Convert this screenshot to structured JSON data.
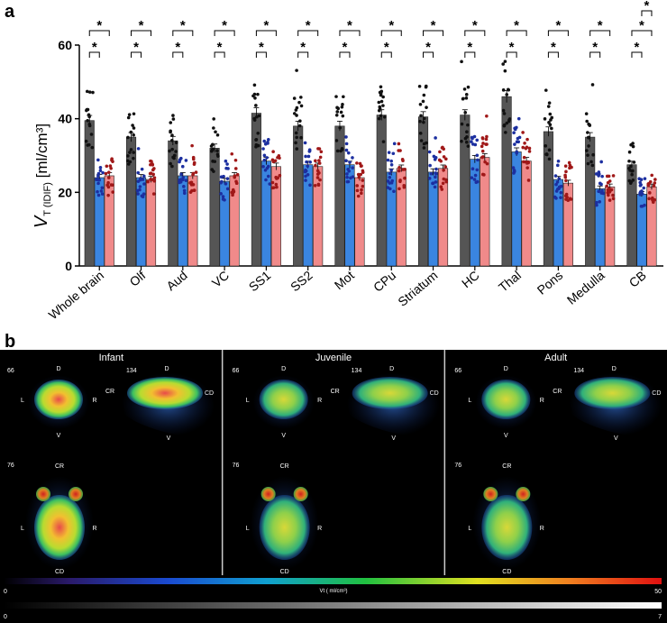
{
  "panel_labels": {
    "a": "a",
    "b": "b"
  },
  "chart_data": {
    "type": "bar",
    "ylabel_main": "V",
    "ylabel_sub": "T (IDIF)",
    "ylabel_unit": " [ml/cm³]",
    "ylim": [
      0,
      60
    ],
    "yticks": [
      0,
      20,
      40,
      60
    ],
    "categories": [
      "Whole brain",
      "Olf",
      "Aud",
      "VC",
      "SS1",
      "SS2",
      "Mot",
      "CPu",
      "Striatum",
      "HC",
      "Thal",
      "Pons",
      "Medulla",
      "CB"
    ],
    "series": [
      {
        "name": "Infant",
        "color": "#555555",
        "values": [
          39.5,
          35,
          34,
          32,
          41.5,
          38,
          38,
          41,
          40.5,
          41,
          46,
          36.5,
          35,
          27.5
        ]
      },
      {
        "name": "Juvenile",
        "color": "#3a85e0",
        "values": [
          24,
          24,
          24.5,
          23,
          28.5,
          27.5,
          27.5,
          25.5,
          25.5,
          29,
          31,
          23.5,
          21,
          19.5
        ]
      },
      {
        "name": "Adult",
        "color": "#f08a8a",
        "values": [
          24.5,
          23.5,
          24.5,
          24.5,
          27,
          27,
          24,
          26.5,
          26.5,
          29.5,
          28.5,
          22.5,
          21.5,
          21.5
        ]
      }
    ],
    "significance_marker": "*",
    "significance_top": [
      "*",
      "*",
      "*",
      "*",
      "*",
      "*",
      "*",
      "*",
      "*",
      "*",
      "*",
      "*",
      "*",
      "*"
    ],
    "significance_low": [
      "*",
      "*",
      "*",
      "*",
      "*",
      "*",
      "*",
      "*",
      "*",
      "*",
      "*",
      "*",
      "*",
      "*"
    ],
    "significance_extra_cb": "*"
  },
  "pet_figure": {
    "groups": [
      {
        "title": "Infant",
        "intensity": 1.0
      },
      {
        "title": "Juvenile",
        "intensity": 0.55
      },
      {
        "title": "Adult",
        "intensity": 0.5
      }
    ],
    "slice_coronal": "66",
    "slice_sagittal": "134",
    "slice_axial": "76",
    "orient": {
      "D": "D",
      "V": "V",
      "L": "L",
      "R": "R",
      "CR": "CR",
      "CD": "CD"
    },
    "colorbar_label": "Vt ( ml/cm³)",
    "colorbar_min": "0",
    "colorbar_max": "50",
    "graybar_min": "0",
    "graybar_max": "7"
  }
}
